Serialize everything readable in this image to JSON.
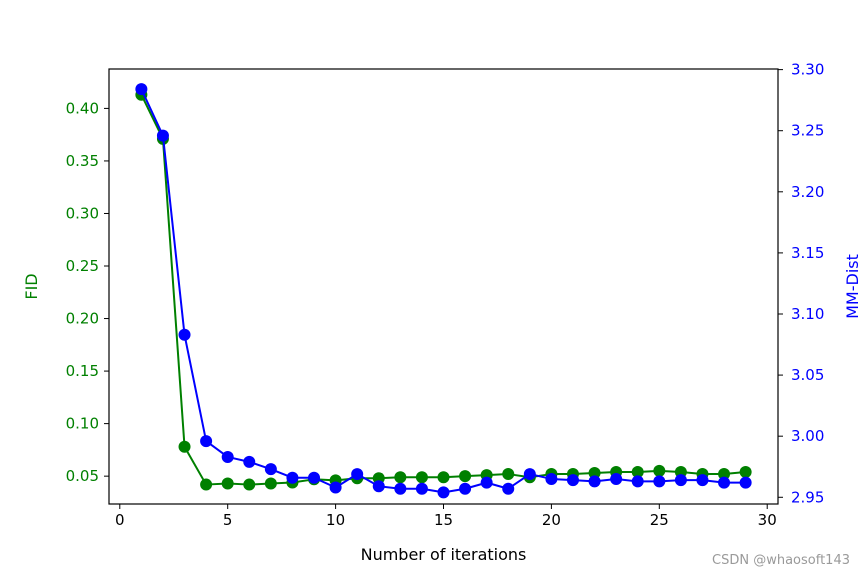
{
  "chart_data": {
    "type": "line",
    "xlabel": "Number of iterations",
    "xlim": [
      -0.5,
      30.5
    ],
    "xticks": [
      0,
      5,
      10,
      15,
      20,
      25,
      30
    ],
    "x": [
      1,
      2,
      3,
      4,
      5,
      6,
      7,
      8,
      9,
      10,
      11,
      12,
      13,
      14,
      15,
      16,
      17,
      18,
      19,
      20,
      21,
      22,
      23,
      24,
      25,
      26,
      27,
      28,
      29
    ],
    "left_axis": {
      "label": "FID",
      "color": "#008000",
      "ylim": [
        0.0235,
        0.4375
      ],
      "ticks": [
        "0.05",
        "0.10",
        "0.15",
        "0.20",
        "0.25",
        "0.30",
        "0.35",
        "0.40"
      ]
    },
    "right_axis": {
      "label": "MM-Dist",
      "color": "#0000ff",
      "ylim": [
        2.9445,
        3.3005
      ],
      "ticks": [
        "2.95",
        "3.00",
        "3.05",
        "3.10",
        "3.15",
        "3.20",
        "3.25",
        "3.30"
      ]
    },
    "series": [
      {
        "name": "",
        "axis": "left",
        "color": "#008000",
        "values": [
          0.413,
          0.371,
          0.078,
          0.042,
          0.043,
          0.042,
          0.043,
          0.044,
          0.047,
          0.046,
          0.048,
          0.048,
          0.049,
          0.049,
          0.049,
          0.05,
          0.051,
          0.052,
          0.049,
          0.052,
          0.052,
          0.053,
          0.054,
          0.054,
          0.055,
          0.054,
          0.052,
          0.052,
          0.054
        ]
      },
      {
        "name": "",
        "axis": "right",
        "color": "#0000ff",
        "values": [
          3.284,
          3.246,
          3.083,
          2.996,
          2.983,
          2.979,
          2.973,
          2.966,
          2.966,
          2.958,
          2.969,
          2.959,
          2.957,
          2.957,
          2.954,
          2.957,
          2.962,
          2.957,
          2.969,
          2.965,
          2.964,
          2.963,
          2.965,
          2.963,
          2.963,
          2.964,
          2.964,
          2.962,
          2.962
        ]
      }
    ]
  },
  "watermark": "CSDN @whaosoft143"
}
